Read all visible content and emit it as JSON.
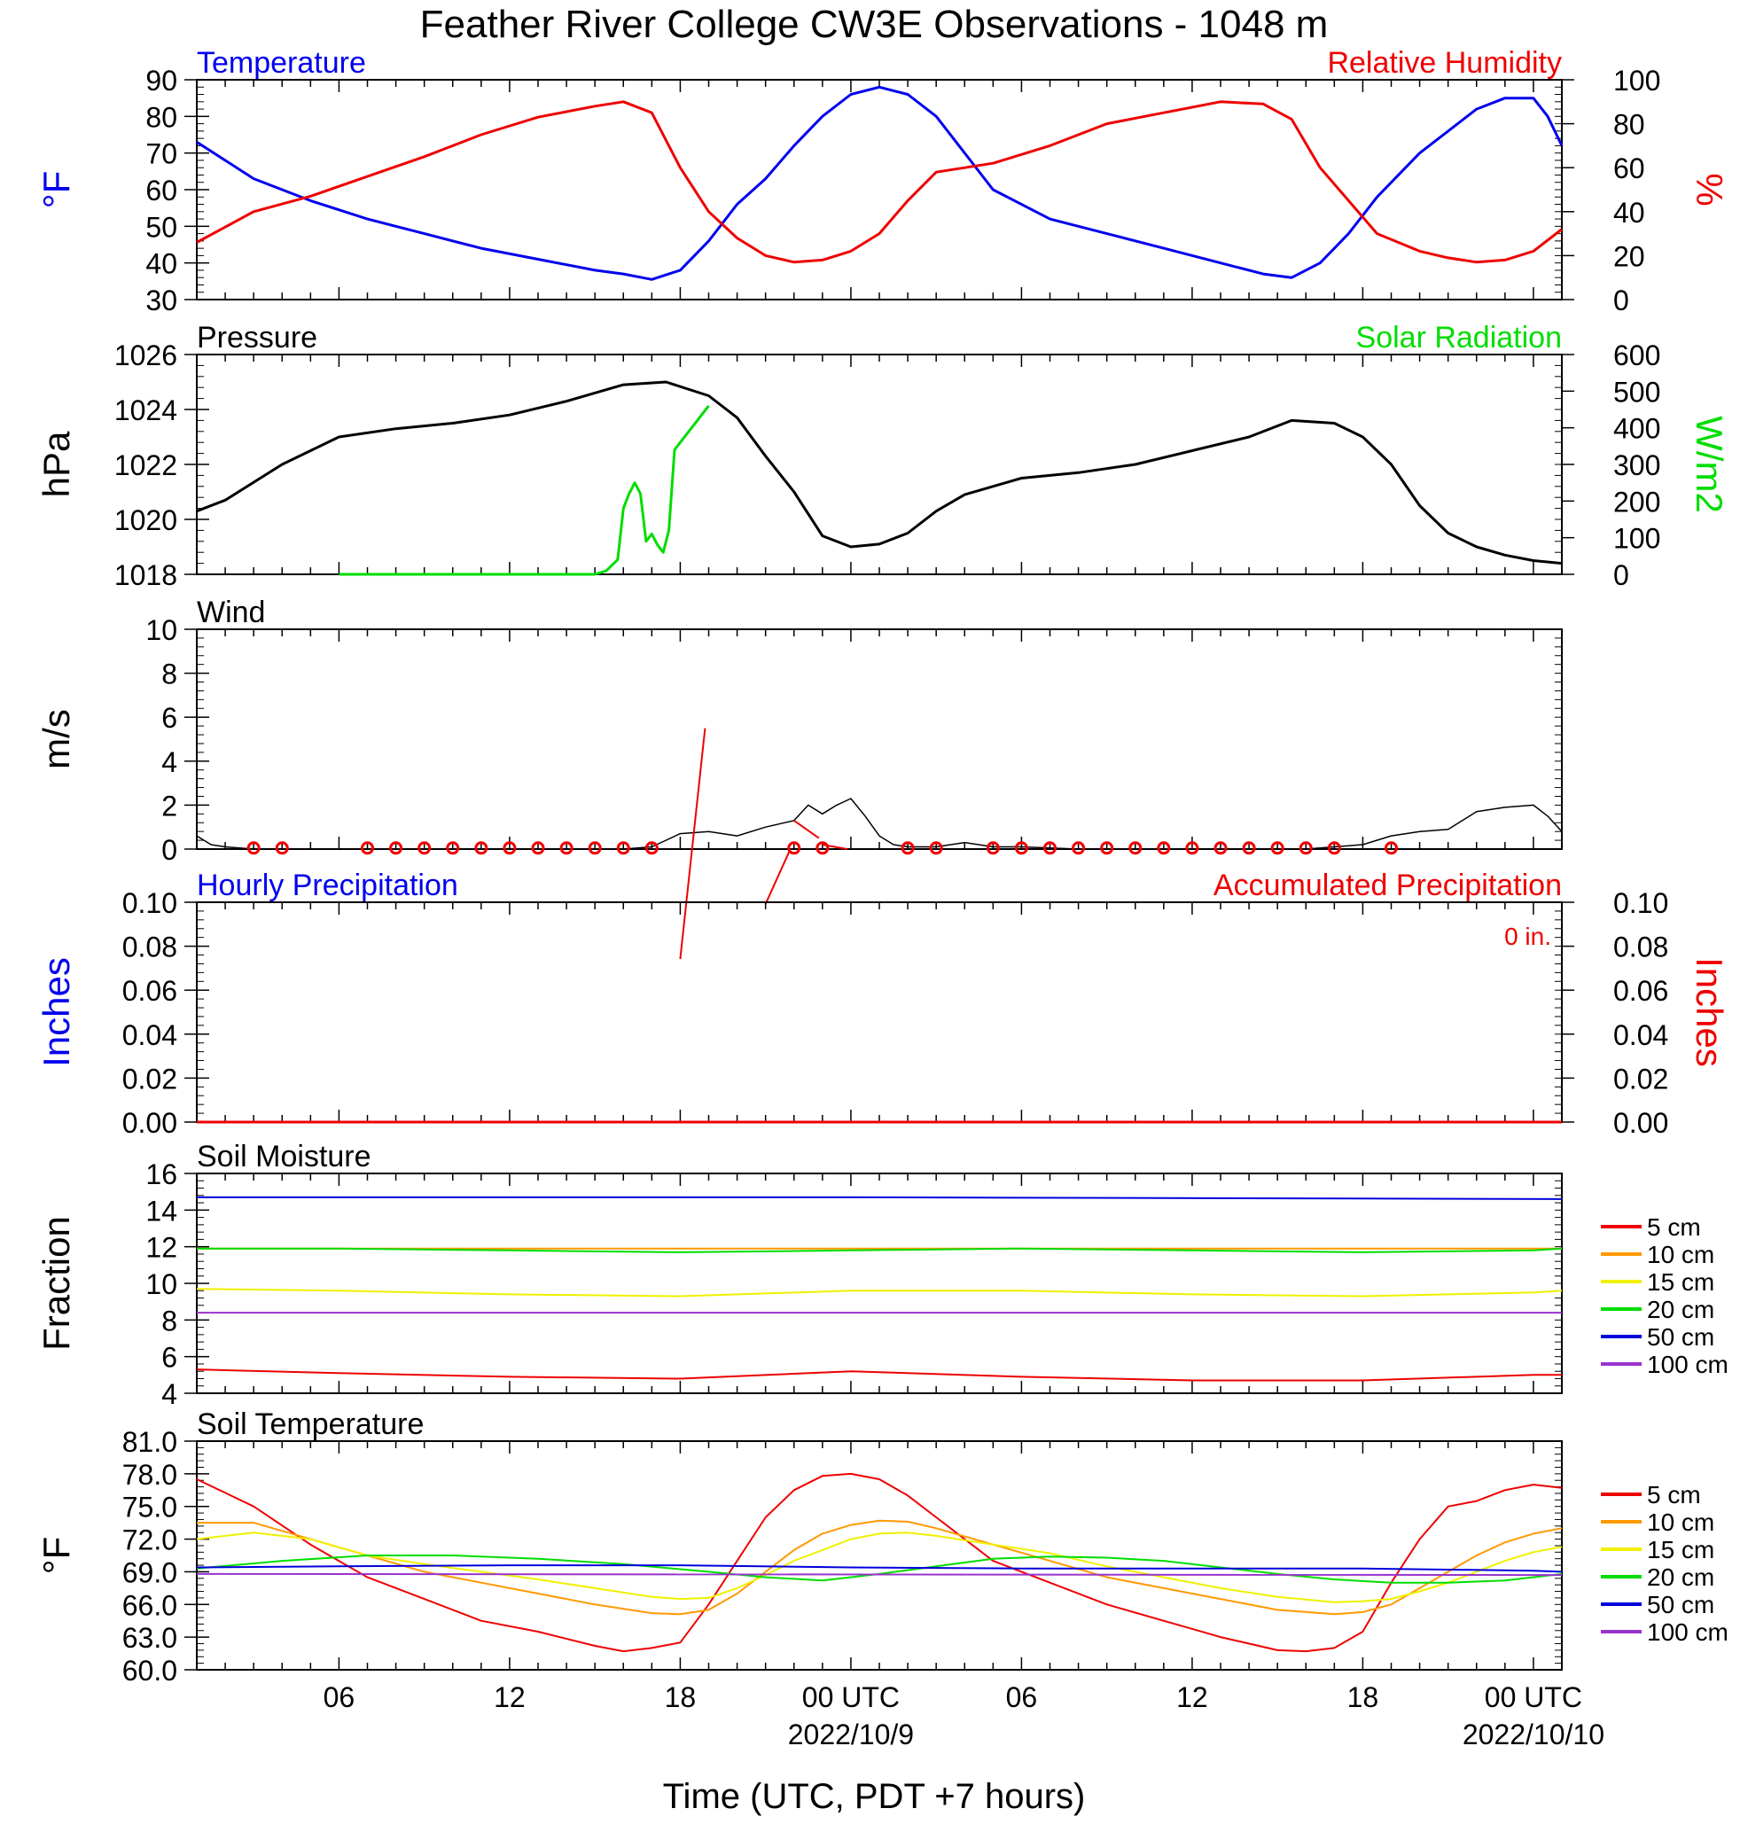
{
  "title": "Feather River College CW3E Observations - 1048 m",
  "colors": {
    "blue": "#0000ee",
    "red": "#ee0000",
    "green": "#00dd00",
    "black": "#000000"
  },
  "x_axis": {
    "label": "Time (UTC, PDT +7 hours)",
    "range_hours": [
      -23,
      25
    ],
    "ticks": [
      {
        "h": -18,
        "label": "06"
      },
      {
        "h": -12,
        "label": "12"
      },
      {
        "h": -6,
        "label": "18"
      },
      {
        "h": 0,
        "label": "00 UTC"
      },
      {
        "h": 6,
        "label": "06"
      },
      {
        "h": 12,
        "label": "12"
      },
      {
        "h": 18,
        "label": "18"
      },
      {
        "h": 24,
        "label": "00 UTC"
      }
    ],
    "dates": [
      {
        "h": 0,
        "label": "2022/10/9"
      },
      {
        "h": 24,
        "label": "2022/10/10"
      }
    ]
  },
  "chart_data": [
    {
      "type": "line",
      "title": "Temperature",
      "title_right": "Relative Humidity",
      "ylabel": "°F",
      "ylim": [
        30,
        90
      ],
      "yticks": [
        30,
        40,
        50,
        60,
        70,
        80,
        90
      ],
      "ylabel_right": "%",
      "ylim_right": [
        0,
        100
      ],
      "yticks_right": [
        0,
        20,
        40,
        60,
        80,
        100
      ],
      "series": [
        {
          "name": "Temperature",
          "color": "#0000ee",
          "axis": "left",
          "x": [
            -23,
            -21,
            -19,
            -17,
            -15,
            -13,
            -11,
            -9,
            -8,
            -7,
            -6,
            -5,
            -4,
            -3,
            -2,
            -1,
            0,
            1,
            2,
            3,
            4,
            5,
            7,
            9,
            11,
            13,
            14.5,
            15.5,
            16.5,
            17.5,
            18.5,
            20,
            21,
            22,
            23,
            24,
            24.5,
            25
          ],
          "y": [
            73,
            63,
            57,
            52,
            48,
            44,
            41,
            38,
            37,
            35.5,
            38,
            46,
            56,
            63,
            72,
            80,
            86,
            88,
            86,
            80,
            70,
            60,
            52,
            48,
            44,
            40,
            37,
            36,
            40,
            48,
            58,
            70,
            76,
            82,
            85,
            85,
            80,
            72
          ]
        },
        {
          "name": "Relative Humidity",
          "color": "#ee0000",
          "axis": "right",
          "x": [
            -23,
            -21,
            -19,
            -17,
            -15,
            -13,
            -11,
            -9,
            -8,
            -7,
            -6,
            -5,
            -4,
            -3,
            -2,
            -1,
            0,
            1,
            2,
            3,
            4,
            5,
            7,
            9,
            11,
            13,
            14.5,
            15.5,
            16.5,
            17.5,
            18.5,
            20,
            21,
            22,
            23,
            24,
            24.5,
            25
          ],
          "y": [
            26,
            40,
            47,
            56,
            65,
            75,
            83,
            88,
            90,
            85,
            60,
            40,
            28,
            20,
            17,
            18,
            22,
            30,
            45,
            58,
            60,
            62,
            70,
            80,
            85,
            90,
            89,
            82,
            60,
            45,
            30,
            22,
            19,
            17,
            18,
            22,
            27,
            32
          ]
        }
      ]
    },
    {
      "type": "line",
      "title": "Pressure",
      "title_right": "Solar Radiation",
      "ylabel": "hPa",
      "ylim": [
        1018,
        1026
      ],
      "yticks": [
        1018,
        1020,
        1022,
        1024,
        1026
      ],
      "ylabel_right": "W/m2",
      "ylim_right": [
        0,
        600
      ],
      "yticks_right": [
        0,
        100,
        200,
        300,
        400,
        500,
        600
      ],
      "series": [
        {
          "name": "Pressure",
          "color": "#000000",
          "axis": "left",
          "x": [
            -23,
            -22,
            -20,
            -18,
            -16,
            -14,
            -12,
            -10,
            -8,
            -6.5,
            -5,
            -4,
            -3,
            -2,
            -1,
            0,
            1,
            2,
            3,
            4,
            6,
            8,
            10,
            12,
            14,
            15.5,
            17,
            18,
            19,
            20,
            21,
            22,
            23,
            24,
            25
          ],
          "y": [
            1020.3,
            1020.7,
            1022.0,
            1023.0,
            1023.3,
            1023.5,
            1023.8,
            1024.3,
            1024.9,
            1025.0,
            1024.5,
            1023.7,
            1022.3,
            1021.0,
            1019.4,
            1019.0,
            1019.1,
            1019.5,
            1020.3,
            1020.9,
            1021.5,
            1021.7,
            1022.0,
            1022.5,
            1023.0,
            1023.6,
            1023.5,
            1023.0,
            1022.0,
            1020.5,
            1019.5,
            1019.0,
            1018.7,
            1018.5,
            1018.4
          ]
        },
        {
          "name": "Solar Radiation",
          "color": "#00dd00",
          "axis": "right",
          "x": [
            -18,
            -9,
            -8.6,
            -8.2,
            -8,
            -7.8,
            -7.6,
            -7.4,
            -7.2,
            -7,
            -6.8,
            -6.6,
            -6.4,
            -6.2,
            -6,
            -5.8,
            -5.6,
            -5.4,
            -5.2,
            -5
          ],
          "y": [
            0,
            0,
            10,
            40,
            180,
            220,
            250,
            220,
            90,
            110,
            80,
            60,
            120,
            340,
            360,
            380,
            400,
            420,
            440,
            460
          ]
        }
      ]
    },
    {
      "type": "line",
      "title": "Wind",
      "ylabel": "m/s",
      "ylim": [
        0,
        10
      ],
      "yticks": [
        0,
        2,
        4,
        6,
        8,
        10
      ],
      "series": [
        {
          "name": "Wind speed",
          "color": "#000000",
          "x": [
            -23,
            -22.5,
            -22,
            -21,
            -20,
            -18,
            -16,
            -14,
            -12,
            -10,
            -8,
            -7,
            -6,
            -5,
            -4,
            -3,
            -2,
            -1.5,
            -1,
            -0.5,
            0,
            0.5,
            1,
            1.5,
            2,
            3,
            4,
            5,
            6,
            8,
            10,
            12,
            14,
            16,
            17,
            18,
            19,
            20,
            21,
            22,
            23,
            24,
            24.5,
            25
          ],
          "y": [
            0.6,
            0.2,
            0.1,
            0,
            0,
            0,
            0,
            0,
            0,
            0,
            0,
            0.1,
            0.7,
            0.8,
            0.6,
            1.0,
            1.3,
            2.0,
            1.6,
            2.0,
            2.3,
            1.5,
            0.6,
            0.2,
            0.1,
            0.1,
            0.3,
            0.1,
            0.1,
            0,
            0,
            0,
            0,
            0,
            0.1,
            0.2,
            0.6,
            0.8,
            0.9,
            1.7,
            1.9,
            2.0,
            1.5,
            0.8
          ]
        }
      ],
      "barb_circles_h": [
        -21,
        -20,
        -17,
        -16,
        -15,
        -14,
        -13,
        -12,
        -11,
        -10,
        -9,
        -8,
        -7,
        -2,
        -1,
        2,
        3,
        5,
        6,
        7,
        8,
        9,
        10,
        11,
        12,
        13,
        14,
        15,
        16,
        17,
        19
      ],
      "barb_lines": [
        [
          -6,
          -5,
          5.5,
          -0.7
        ],
        [
          -3,
          -2.5,
          0,
          -1.0
        ],
        [
          -2,
          1.3,
          0.5,
          0.5
        ],
        [
          -1,
          0.2,
          0,
          0.5
        ]
      ]
    },
    {
      "type": "line",
      "title": "Hourly Precipitation",
      "title_right": "Accumulated Precipitation",
      "annotation": "0 in.",
      "ylabel": "Inches",
      "ylim": [
        0,
        0.1
      ],
      "yticks": [
        0.0,
        0.02,
        0.04,
        0.06,
        0.08,
        0.1
      ],
      "ylabel_right": "Inches",
      "ylim_right": [
        0,
        0.1
      ],
      "yticks_right": [
        0.0,
        0.02,
        0.04,
        0.06,
        0.08,
        0.1
      ],
      "series": [
        {
          "name": "Hourly Precipitation",
          "color": "#0000ee",
          "x": [
            -23,
            25
          ],
          "y": [
            0,
            0
          ]
        },
        {
          "name": "Accumulated Precipitation",
          "color": "#ee0000",
          "x": [
            -23,
            25
          ],
          "y": [
            0,
            0
          ]
        }
      ]
    },
    {
      "type": "line",
      "title": "Soil Moisture",
      "ylabel": "Fraction",
      "ylim": [
        4,
        16
      ],
      "yticks": [
        4,
        6,
        8,
        10,
        12,
        14,
        16
      ],
      "legend": {
        "placement": "right",
        "entries": [
          "5 cm",
          "10 cm",
          "15 cm",
          "20 cm",
          "50 cm",
          "100 cm"
        ]
      },
      "series": [
        {
          "name": "5 cm",
          "color": "#ee0000",
          "x": [
            -23,
            -18,
            -12,
            -6,
            0,
            6,
            12,
            18,
            24,
            25
          ],
          "y": [
            5.3,
            5.1,
            4.9,
            4.8,
            5.2,
            4.9,
            4.7,
            4.7,
            5.0,
            5.0
          ]
        },
        {
          "name": "10 cm",
          "color": "#ff9900",
          "x": [
            -23,
            25
          ],
          "y": [
            11.9,
            11.9
          ]
        },
        {
          "name": "15 cm",
          "color": "#f0f000",
          "x": [
            -23,
            -18,
            -12,
            -6,
            0,
            6,
            12,
            18,
            24,
            25
          ],
          "y": [
            9.7,
            9.6,
            9.4,
            9.3,
            9.6,
            9.6,
            9.4,
            9.3,
            9.5,
            9.6
          ]
        },
        {
          "name": "20 cm",
          "color": "#00dd00",
          "x": [
            -23,
            -18,
            -12,
            -6,
            0,
            6,
            12,
            18,
            24,
            25
          ],
          "y": [
            11.9,
            11.9,
            11.8,
            11.7,
            11.8,
            11.9,
            11.8,
            11.7,
            11.8,
            11.9
          ]
        },
        {
          "name": "50 cm",
          "color": "#0000dd",
          "x": [
            -23,
            0,
            25
          ],
          "y": [
            14.7,
            14.7,
            14.6
          ]
        },
        {
          "name": "100 cm",
          "color": "#9933cc",
          "x": [
            -23,
            25
          ],
          "y": [
            8.4,
            8.4
          ]
        }
      ]
    },
    {
      "type": "line",
      "title": "Soil Temperature",
      "ylabel": "°F",
      "ylim": [
        60,
        81
      ],
      "yticks": [
        60.0,
        63.0,
        66.0,
        69.0,
        72.0,
        75.0,
        78.0,
        81.0
      ],
      "legend": {
        "placement": "right",
        "entries": [
          "5 cm",
          "10 cm",
          "15 cm",
          "20 cm",
          "50 cm",
          "100 cm"
        ]
      },
      "series": [
        {
          "name": "5 cm",
          "color": "#ee0000",
          "x": [
            -23,
            -21,
            -19,
            -17,
            -15,
            -13,
            -11,
            -9,
            -8,
            -7,
            -6,
            -5,
            -4,
            -3,
            -2,
            -1,
            0,
            1,
            2,
            3,
            4,
            5,
            7,
            9,
            11,
            13,
            15,
            16,
            17,
            18,
            19,
            20,
            21,
            22,
            23,
            24,
            25
          ],
          "y": [
            77.5,
            75,
            71.5,
            68.5,
            66.5,
            64.5,
            63.5,
            62.2,
            61.7,
            62.0,
            62.5,
            66,
            70,
            74,
            76.5,
            77.8,
            78.0,
            77.5,
            76,
            74,
            72,
            70,
            68,
            66,
            64.5,
            63,
            61.8,
            61.7,
            62.0,
            63.5,
            68,
            72,
            75,
            75.5,
            76.5,
            77,
            76.7
          ]
        },
        {
          "name": "10 cm",
          "color": "#ff9900",
          "x": [
            -23,
            -21,
            -19,
            -17,
            -15,
            -13,
            -11,
            -9,
            -7,
            -6,
            -5,
            -4,
            -3,
            -2,
            -1,
            0,
            1,
            2,
            3,
            5,
            7,
            9,
            11,
            13,
            15,
            17,
            18,
            19,
            20,
            21,
            22,
            23,
            24,
            25
          ],
          "y": [
            73.5,
            73.5,
            72,
            70.5,
            69,
            68,
            67,
            66,
            65.2,
            65.1,
            65.5,
            67,
            69,
            71,
            72.5,
            73.3,
            73.7,
            73.6,
            73,
            71.5,
            70,
            68.5,
            67.5,
            66.5,
            65.5,
            65.1,
            65.3,
            66,
            67.5,
            69,
            70.5,
            71.7,
            72.5,
            73
          ]
        },
        {
          "name": "15 cm",
          "color": "#f0f000",
          "x": [
            -23,
            -21,
            -19,
            -17,
            -15,
            -13,
            -11,
            -9,
            -7,
            -6,
            -5,
            -4,
            -3,
            -2,
            -1,
            0,
            1,
            2,
            3,
            5,
            7,
            9,
            11,
            13,
            15,
            17,
            18,
            19,
            20,
            21,
            22,
            23,
            24,
            25
          ],
          "y": [
            72,
            72.6,
            72,
            70.5,
            69.7,
            69,
            68.3,
            67.5,
            66.7,
            66.5,
            66.6,
            67.5,
            68.7,
            70,
            71,
            72,
            72.5,
            72.6,
            72.3,
            71.5,
            70.7,
            69.5,
            68.5,
            67.5,
            66.7,
            66.2,
            66.3,
            66.5,
            67.2,
            68,
            69,
            70,
            70.8,
            71.3
          ]
        },
        {
          "name": "20 cm",
          "color": "#00dd00",
          "x": [
            -23,
            -20,
            -17,
            -14,
            -11,
            -8,
            -5,
            -3,
            -1,
            1,
            3,
            5,
            7,
            9,
            11,
            13,
            15,
            17,
            19,
            21,
            23,
            25
          ],
          "y": [
            69.3,
            70.0,
            70.5,
            70.5,
            70.2,
            69.7,
            69.0,
            68.5,
            68.2,
            68.8,
            69.5,
            70.2,
            70.4,
            70.3,
            70.0,
            69.4,
            68.8,
            68.3,
            68.0,
            68.0,
            68.2,
            68.8
          ]
        },
        {
          "name": "50 cm",
          "color": "#0000dd",
          "x": [
            -23,
            -18,
            -12,
            -6,
            0,
            6,
            12,
            18,
            24,
            25
          ],
          "y": [
            69.4,
            69.5,
            69.6,
            69.6,
            69.4,
            69.3,
            69.3,
            69.3,
            69.1,
            69.0
          ]
        },
        {
          "name": "100 cm",
          "color": "#9933cc",
          "x": [
            -23,
            25
          ],
          "y": [
            68.8,
            68.7
          ]
        }
      ]
    }
  ]
}
